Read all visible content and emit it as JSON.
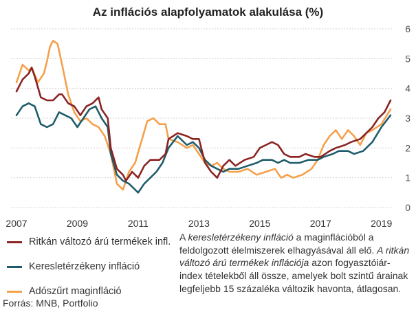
{
  "title": "Az inflációs alapfolyamatok alakulása (%)",
  "source": "Forrás: MNB, Portfolio",
  "note": {
    "p1": "A ",
    "i1": "keresletérzékeny infláció",
    "p2": " a maginflációból a feldolgozott élelmiszerek elhagyásával áll elő. ",
    "i2": "A ritkán változó árú termékek inflációja",
    "p3": " azon fogyasztóiár-index tételekből áll össze, amelyek bolt szintű árainak legfeljebb 15 százaléka változik havonta, átlagosan."
  },
  "chart_data": {
    "type": "line",
    "title": "Az inflációs alapfolyamatok alakulása (%)",
    "ylim": [
      0,
      6
    ],
    "xlim": [
      2007.0,
      2019.3
    ],
    "yticks": [
      0,
      1,
      2,
      3,
      4,
      5,
      6
    ],
    "xticks": [
      "2007",
      "2009",
      "2011",
      "2013",
      "2015",
      "2017",
      "2019"
    ],
    "grid": "horizontal",
    "legend_position": "bottom-left",
    "series": [
      {
        "name": "Ritkán változó árú termékek infl.",
        "color": "#8b2323",
        "points": [
          [
            2007.0,
            3.9
          ],
          [
            2007.2,
            4.3
          ],
          [
            2007.4,
            4.5
          ],
          [
            2007.5,
            4.7
          ],
          [
            2007.6,
            4.4
          ],
          [
            2007.8,
            3.7
          ],
          [
            2008.0,
            3.6
          ],
          [
            2008.2,
            3.6
          ],
          [
            2008.4,
            3.8
          ],
          [
            2008.5,
            3.8
          ],
          [
            2008.7,
            3.5
          ],
          [
            2008.9,
            3.4
          ],
          [
            2009.1,
            3.1
          ],
          [
            2009.3,
            3.4
          ],
          [
            2009.5,
            3.5
          ],
          [
            2009.7,
            3.7
          ],
          [
            2009.8,
            3.3
          ],
          [
            2010.0,
            3.0
          ],
          [
            2010.1,
            2.0
          ],
          [
            2010.3,
            1.3
          ],
          [
            2010.5,
            1.1
          ],
          [
            2010.6,
            0.9
          ],
          [
            2010.8,
            1.2
          ],
          [
            2011.0,
            1.0
          ],
          [
            2011.2,
            1.4
          ],
          [
            2011.4,
            1.6
          ],
          [
            2011.7,
            1.6
          ],
          [
            2011.9,
            1.8
          ],
          [
            2012.0,
            2.3
          ],
          [
            2012.3,
            2.5
          ],
          [
            2012.6,
            2.4
          ],
          [
            2012.8,
            2.3
          ],
          [
            2013.0,
            2.3
          ],
          [
            2013.2,
            1.5
          ],
          [
            2013.4,
            1.2
          ],
          [
            2013.6,
            1.0
          ],
          [
            2013.8,
            1.4
          ],
          [
            2014.0,
            1.6
          ],
          [
            2014.2,
            1.4
          ],
          [
            2014.5,
            1.6
          ],
          [
            2014.8,
            1.7
          ],
          [
            2015.0,
            2.0
          ],
          [
            2015.2,
            2.1
          ],
          [
            2015.4,
            2.2
          ],
          [
            2015.6,
            2.1
          ],
          [
            2015.8,
            1.8
          ],
          [
            2016.0,
            1.7
          ],
          [
            2016.3,
            1.7
          ],
          [
            2016.5,
            1.8
          ],
          [
            2016.8,
            1.7
          ],
          [
            2017.0,
            1.7
          ],
          [
            2017.3,
            1.9
          ],
          [
            2017.5,
            2.0
          ],
          [
            2017.8,
            2.1
          ],
          [
            2018.0,
            2.2
          ],
          [
            2018.3,
            2.3
          ],
          [
            2018.5,
            2.5
          ],
          [
            2018.7,
            2.7
          ],
          [
            2018.9,
            3.0
          ],
          [
            2019.1,
            3.2
          ],
          [
            2019.3,
            3.6
          ]
        ]
      },
      {
        "name": "Keresletérzékeny infláció",
        "color": "#1f5c6b",
        "points": [
          [
            2007.0,
            3.1
          ],
          [
            2007.2,
            3.4
          ],
          [
            2007.4,
            3.5
          ],
          [
            2007.6,
            3.4
          ],
          [
            2007.8,
            2.8
          ],
          [
            2008.0,
            2.7
          ],
          [
            2008.2,
            2.8
          ],
          [
            2008.4,
            3.2
          ],
          [
            2008.6,
            3.1
          ],
          [
            2008.8,
            3.0
          ],
          [
            2009.0,
            2.7
          ],
          [
            2009.2,
            3.0
          ],
          [
            2009.4,
            3.3
          ],
          [
            2009.6,
            3.4
          ],
          [
            2009.8,
            3.0
          ],
          [
            2010.0,
            2.7
          ],
          [
            2010.1,
            1.8
          ],
          [
            2010.3,
            1.1
          ],
          [
            2010.5,
            0.9
          ],
          [
            2010.7,
            0.8
          ],
          [
            2010.9,
            0.6
          ],
          [
            2011.0,
            0.5
          ],
          [
            2011.2,
            0.8
          ],
          [
            2011.4,
            1.0
          ],
          [
            2011.6,
            1.2
          ],
          [
            2011.8,
            1.5
          ],
          [
            2012.0,
            2.0
          ],
          [
            2012.3,
            2.4
          ],
          [
            2012.6,
            2.1
          ],
          [
            2012.8,
            2.2
          ],
          [
            2013.0,
            2.0
          ],
          [
            2013.2,
            1.6
          ],
          [
            2013.4,
            1.4
          ],
          [
            2013.6,
            1.3
          ],
          [
            2013.8,
            1.2
          ],
          [
            2014.0,
            1.3
          ],
          [
            2014.3,
            1.3
          ],
          [
            2014.6,
            1.4
          ],
          [
            2014.9,
            1.5
          ],
          [
            2015.1,
            1.6
          ],
          [
            2015.4,
            1.6
          ],
          [
            2015.6,
            1.5
          ],
          [
            2015.8,
            1.6
          ],
          [
            2016.0,
            1.5
          ],
          [
            2016.3,
            1.5
          ],
          [
            2016.6,
            1.6
          ],
          [
            2016.9,
            1.6
          ],
          [
            2017.1,
            1.7
          ],
          [
            2017.4,
            1.8
          ],
          [
            2017.6,
            1.9
          ],
          [
            2017.9,
            1.9
          ],
          [
            2018.1,
            1.8
          ],
          [
            2018.4,
            1.9
          ],
          [
            2018.7,
            2.2
          ],
          [
            2019.0,
            2.7
          ],
          [
            2019.3,
            3.1
          ]
        ]
      },
      {
        "name": "Adószűrt maginfláció",
        "color": "#f5a04a",
        "points": [
          [
            2007.0,
            4.2
          ],
          [
            2007.2,
            4.8
          ],
          [
            2007.4,
            4.6
          ],
          [
            2007.5,
            4.7
          ],
          [
            2007.7,
            4.2
          ],
          [
            2007.9,
            4.5
          ],
          [
            2008.0,
            4.9
          ],
          [
            2008.1,
            5.4
          ],
          [
            2008.2,
            5.6
          ],
          [
            2008.35,
            5.5
          ],
          [
            2008.5,
            4.8
          ],
          [
            2008.7,
            3.8
          ],
          [
            2008.9,
            3.2
          ],
          [
            2009.1,
            2.9
          ],
          [
            2009.3,
            3.0
          ],
          [
            2009.5,
            2.8
          ],
          [
            2009.7,
            2.7
          ],
          [
            2009.9,
            2.4
          ],
          [
            2010.1,
            1.8
          ],
          [
            2010.3,
            0.8
          ],
          [
            2010.5,
            0.6
          ],
          [
            2010.7,
            1.2
          ],
          [
            2010.9,
            1.5
          ],
          [
            2011.1,
            2.2
          ],
          [
            2011.3,
            2.9
          ],
          [
            2011.5,
            3.0
          ],
          [
            2011.7,
            2.8
          ],
          [
            2011.9,
            2.8
          ],
          [
            2012.0,
            2.3
          ],
          [
            2012.3,
            2.2
          ],
          [
            2012.6,
            2.0
          ],
          [
            2012.8,
            2.1
          ],
          [
            2013.0,
            1.8
          ],
          [
            2013.2,
            1.5
          ],
          [
            2013.4,
            1.4
          ],
          [
            2013.6,
            1.5
          ],
          [
            2013.8,
            1.3
          ],
          [
            2014.0,
            1.2
          ],
          [
            2014.3,
            1.2
          ],
          [
            2014.6,
            1.3
          ],
          [
            2014.9,
            1.1
          ],
          [
            2015.2,
            1.2
          ],
          [
            2015.5,
            1.3
          ],
          [
            2015.7,
            1.0
          ],
          [
            2015.9,
            1.1
          ],
          [
            2016.1,
            1.0
          ],
          [
            2016.4,
            1.1
          ],
          [
            2016.7,
            1.3
          ],
          [
            2016.9,
            1.6
          ],
          [
            2017.1,
            2.1
          ],
          [
            2017.3,
            2.4
          ],
          [
            2017.5,
            2.6
          ],
          [
            2017.7,
            2.3
          ],
          [
            2017.9,
            2.6
          ],
          [
            2018.1,
            2.4
          ],
          [
            2018.3,
            2.1
          ],
          [
            2018.5,
            2.5
          ],
          [
            2018.7,
            2.6
          ],
          [
            2019.0,
            2.8
          ],
          [
            2019.3,
            3.3
          ]
        ]
      }
    ]
  }
}
